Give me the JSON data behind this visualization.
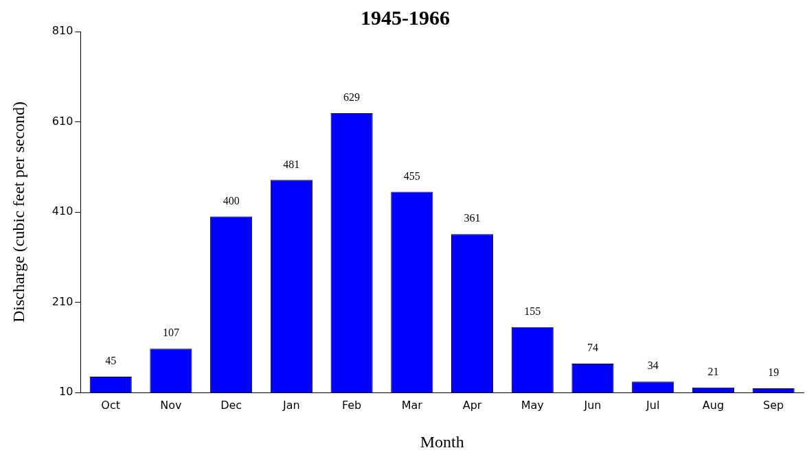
{
  "chart_data": {
    "type": "bar",
    "title": "1945-1966",
    "xlabel": "Month",
    "ylabel": "Discharge (cubic feet per second)",
    "categories": [
      "Oct",
      "Nov",
      "Dec",
      "Jan",
      "Feb",
      "Mar",
      "Apr",
      "May",
      "Jun",
      "Jul",
      "Aug",
      "Sep"
    ],
    "values": [
      45,
      107,
      400,
      481,
      629,
      455,
      361,
      155,
      74,
      34,
      21,
      19
    ],
    "color": "#0000ff",
    "ylim": [
      10,
      810
    ],
    "yticks": [
      10,
      210,
      410,
      610,
      810
    ],
    "grid": false,
    "legend": false,
    "data_labels": true
  }
}
